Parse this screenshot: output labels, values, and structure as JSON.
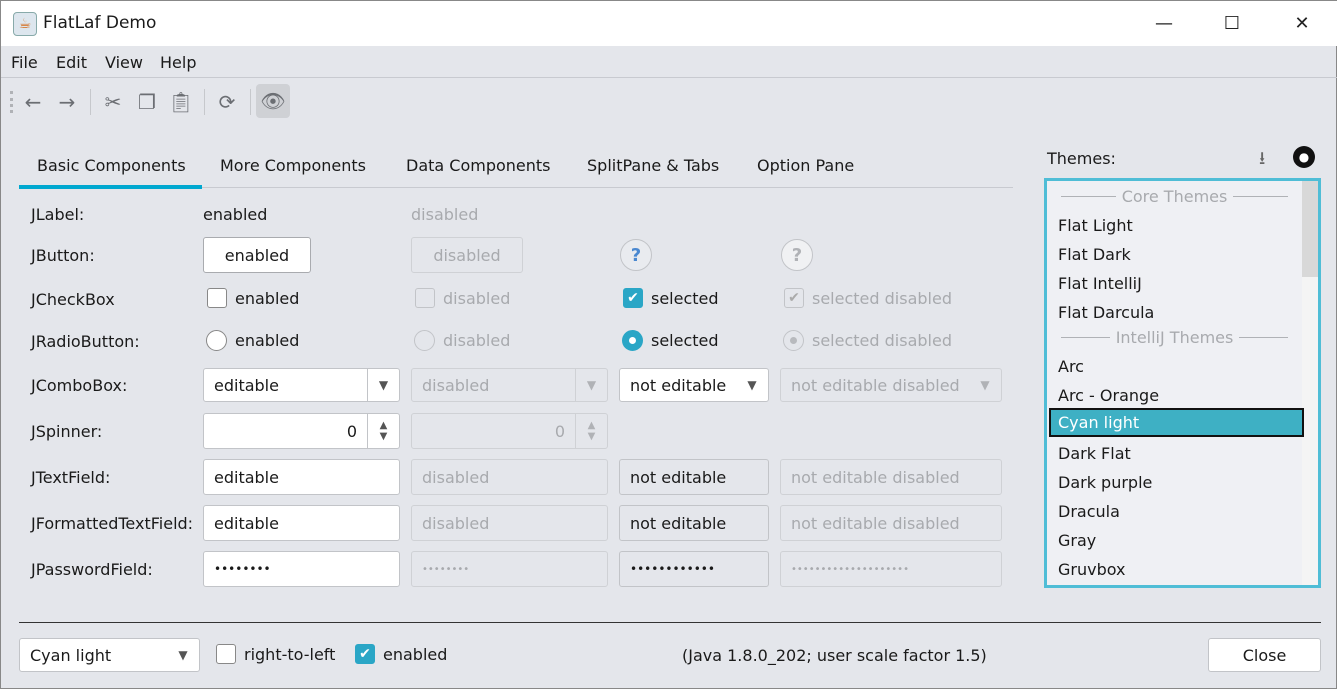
{
  "window": {
    "title": "FlatLaf Demo",
    "minimize": "—",
    "maximize": "☐",
    "close": "✕"
  },
  "menu": [
    "File",
    "Edit",
    "View",
    "Help"
  ],
  "toolbar": {
    "icons": [
      "arrow-left",
      "arrow-right",
      "cut",
      "copy",
      "paste",
      "refresh",
      "eye"
    ]
  },
  "tabs": [
    "Basic Components",
    "More Components",
    "Data Components",
    "SplitPane & Tabs",
    "Option Pane"
  ],
  "active_tab": "Basic Components",
  "accent": "#00a8d0",
  "rows": {
    "label": {
      "name": "JLabel:",
      "c1": "enabled",
      "c2": "disabled"
    },
    "button": {
      "name": "JButton:",
      "c1": "enabled",
      "c2": "disabled",
      "c3": "?",
      "c4": "?"
    },
    "checkbox": {
      "name": "JCheckBox",
      "c1": "enabled",
      "c2": "disabled",
      "c3": "selected",
      "c4": "selected disabled"
    },
    "radio": {
      "name": "JRadioButton:",
      "c1": "enabled",
      "c2": "disabled",
      "c3": "selected",
      "c4": "selected disabled"
    },
    "combo": {
      "name": "JComboBox:",
      "c1": "editable",
      "c2": "disabled",
      "c3": "not editable",
      "c4": "not editable disabled"
    },
    "spinner": {
      "name": "JSpinner:",
      "c1": "0",
      "c2": "0"
    },
    "textfield": {
      "name": "JTextField:",
      "c1": "editable",
      "c2": "disabled",
      "c3": "not editable",
      "c4": "not editable disabled"
    },
    "formatted": {
      "name": "JFormattedTextField:",
      "c1": "editable",
      "c2": "disabled",
      "c3": "not editable",
      "c4": "not editable disabled"
    },
    "password": {
      "name": "JPasswordField:",
      "c1": "••••••••",
      "c2": "••••••••",
      "c3": "••••••••••••",
      "c4": "••••••••••••••••••••"
    }
  },
  "themes": {
    "label": "Themes:",
    "sections": [
      "Core Themes",
      "IntelliJ Themes"
    ],
    "core": [
      "Flat Light",
      "Flat Dark",
      "Flat IntelliJ",
      "Flat Darcula"
    ],
    "intellij": [
      "Arc",
      "Arc - Orange",
      "Cyan light",
      "Dark Flat",
      "Dark purple",
      "Dracula",
      "Gray",
      "Gruvbox"
    ],
    "selected": "Cyan light"
  },
  "footer": {
    "theme_combo": "Cyan light",
    "rtl": "right-to-left",
    "enabled": "enabled",
    "info": "(Java 1.8.0_202;  user scale factor 1.5)",
    "close": "Close"
  }
}
